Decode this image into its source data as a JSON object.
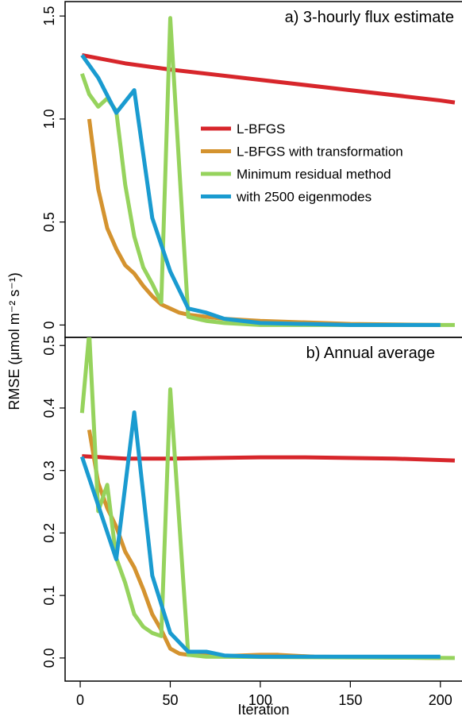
{
  "chart_data": [
    {
      "type": "line",
      "title": "a) 3-hourly flux estimate",
      "ylabel": "RMSE (μmol m⁻² s⁻¹)",
      "xlim": [
        -8.4,
        212
      ],
      "ylim": [
        -0.06,
        1.57
      ],
      "yticks": [
        0,
        0.5,
        {
          "value": 1,
          "label": "1.0"
        },
        1.5
      ],
      "series": [
        {
          "name": "L-BFGS",
          "color": "#d7262b",
          "x": [
            1,
            25,
            50,
            100,
            150,
            200,
            208
          ],
          "values": [
            1.31,
            1.27,
            1.24,
            1.19,
            1.14,
            1.09,
            1.08
          ]
        },
        {
          "name": "L-BFGS with transformation",
          "color": "#d4932f",
          "x": [
            5,
            10,
            15,
            20,
            25,
            30,
            35,
            40,
            45,
            50,
            55,
            60,
            70,
            80,
            100,
            150,
            200
          ],
          "values": [
            1.0,
            0.66,
            0.47,
            0.37,
            0.29,
            0.25,
            0.19,
            0.14,
            0.1,
            0.08,
            0.06,
            0.05,
            0.04,
            0.03,
            0.02,
            0.005,
            0
          ]
        },
        {
          "name": "Minimum residual method",
          "color": "#96d35d",
          "x": [
            1,
            5,
            10,
            15,
            20,
            25,
            30,
            35,
            40,
            45,
            50,
            60,
            70,
            80,
            100,
            150,
            208
          ],
          "values": [
            1.22,
            1.12,
            1.06,
            1.1,
            1.04,
            0.68,
            0.43,
            0.28,
            0.2,
            0.11,
            1.49,
            0.04,
            0.02,
            0.01,
            0,
            0,
            0
          ]
        },
        {
          "name": "with 2500 eigenmodes",
          "color": "#1a9bd0",
          "x": [
            1,
            10,
            20,
            30,
            40,
            50,
            60,
            70,
            80,
            100,
            150,
            200
          ],
          "values": [
            1.31,
            1.2,
            1.03,
            1.14,
            0.52,
            0.26,
            0.08,
            0.06,
            0.03,
            0.01,
            0,
            0
          ]
        }
      ]
    },
    {
      "type": "line",
      "title": "b) Annual average",
      "xlabel": "Iteration",
      "xlim": [
        -8.4,
        212
      ],
      "ylim": [
        -0.037,
        0.513
      ],
      "xticks": [
        0,
        50,
        100,
        150,
        200
      ],
      "yticks": [
        {
          "value": 0,
          "label": "0.0"
        },
        0.1,
        0.2,
        0.3,
        0.4,
        0.5
      ],
      "series": [
        {
          "color": "#d7262b",
          "x": [
            1,
            25,
            50,
            100,
            125,
            175,
            208
          ],
          "values": [
            0.323,
            0.319,
            0.319,
            0.321,
            0.321,
            0.319,
            0.316
          ]
        },
        {
          "color": "#d4932f",
          "x": [
            5,
            10,
            15,
            20,
            25,
            30,
            35,
            40,
            45,
            50,
            55,
            60,
            80,
            100,
            110,
            130,
            200
          ],
          "values": [
            0.365,
            0.28,
            0.24,
            0.21,
            0.17,
            0.145,
            0.11,
            0.07,
            0.045,
            0.015,
            0.007,
            0.005,
            0.003,
            0.005,
            0.005,
            0.002,
            0
          ]
        },
        {
          "color": "#96d35d",
          "x": [
            1,
            5,
            10,
            15,
            20,
            25,
            30,
            35,
            40,
            45,
            50,
            60,
            70,
            208
          ],
          "values": [
            0.392,
            0.52,
            0.235,
            0.277,
            0.16,
            0.12,
            0.07,
            0.05,
            0.04,
            0.035,
            0.43,
            0.005,
            0.002,
            0
          ]
        },
        {
          "color": "#1a9bd0",
          "x": [
            1,
            20,
            30,
            40,
            50,
            55,
            60,
            70,
            80,
            100,
            200
          ],
          "values": [
            0.322,
            0.158,
            0.393,
            0.132,
            0.04,
            0.025,
            0.01,
            0.01,
            0.004,
            0.002,
            0.002
          ]
        }
      ]
    }
  ]
}
